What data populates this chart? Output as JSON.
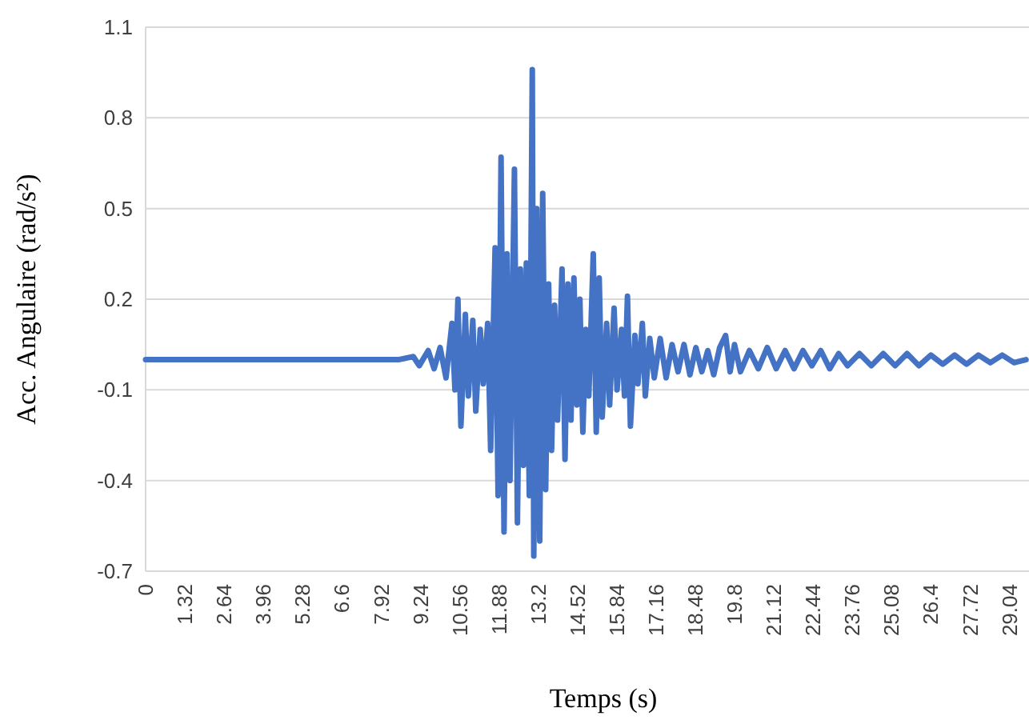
{
  "chart_data": {
    "type": "line",
    "xlabel": "Temps (s)",
    "ylabel": "Acc. Angulaire (rad/s²)",
    "x": [
      0,
      8.5,
      9.0,
      9.2,
      9.5,
      9.7,
      9.9,
      10.1,
      10.3,
      10.4,
      10.5,
      10.6,
      10.75,
      10.85,
      11.0,
      11.1,
      11.25,
      11.35,
      11.5,
      11.6,
      11.75,
      11.85,
      11.95,
      12.05,
      12.15,
      12.25,
      12.4,
      12.5,
      12.6,
      12.7,
      12.8,
      12.9,
      13.0,
      13.05,
      13.15,
      13.25,
      13.35,
      13.45,
      13.55,
      13.65,
      13.75,
      13.85,
      14.0,
      14.1,
      14.2,
      14.3,
      14.4,
      14.5,
      14.6,
      14.7,
      14.8,
      14.9,
      15.05,
      15.15,
      15.25,
      15.35,
      15.5,
      15.6,
      15.75,
      15.85,
      16.0,
      16.1,
      16.2,
      16.3,
      16.45,
      16.55,
      16.7,
      16.8,
      16.95,
      17.1,
      17.3,
      17.5,
      17.7,
      17.9,
      18.1,
      18.3,
      18.5,
      18.7,
      18.9,
      19.1,
      19.3,
      19.5,
      19.65,
      19.8,
      20.0,
      20.3,
      20.6,
      20.9,
      21.2,
      21.5,
      21.8,
      22.1,
      22.4,
      22.7,
      23.0,
      23.3,
      23.6,
      24.0,
      24.4,
      24.8,
      25.2,
      25.6,
      26.0,
      26.4,
      26.8,
      27.2,
      27.6,
      28.0,
      28.4,
      28.8,
      29.2,
      29.6
    ],
    "series": [
      {
        "color": "#4472c4",
        "values": [
          0,
          0,
          0.01,
          -0.02,
          0.03,
          -0.03,
          0.04,
          -0.06,
          0.12,
          -0.1,
          0.2,
          -0.22,
          0.15,
          -0.12,
          0.13,
          -0.17,
          0.1,
          -0.08,
          0.12,
          -0.3,
          0.37,
          -0.45,
          0.67,
          -0.57,
          0.35,
          -0.4,
          0.63,
          -0.54,
          0.3,
          -0.35,
          0.32,
          -0.45,
          0.96,
          -0.65,
          0.5,
          -0.6,
          0.55,
          -0.43,
          0.25,
          -0.3,
          0.18,
          -0.2,
          0.3,
          -0.33,
          0.25,
          -0.2,
          0.27,
          -0.15,
          0.2,
          -0.24,
          0.1,
          -0.12,
          0.35,
          -0.24,
          0.27,
          -0.19,
          0.12,
          -0.15,
          0.17,
          -0.1,
          0.1,
          -0.12,
          0.21,
          -0.22,
          0.08,
          -0.08,
          0.12,
          -0.12,
          0.07,
          -0.06,
          0.07,
          -0.06,
          0.05,
          -0.04,
          0.05,
          -0.05,
          0.04,
          -0.04,
          0.03,
          -0.05,
          0.04,
          0.08,
          -0.04,
          0.05,
          -0.04,
          0.03,
          -0.03,
          0.04,
          -0.03,
          0.03,
          -0.03,
          0.03,
          -0.02,
          0.03,
          -0.03,
          0.02,
          -0.02,
          0.02,
          -0.02,
          0.02,
          -0.02,
          0.02,
          -0.02,
          0.015,
          -0.015,
          0.015,
          -0.015,
          0.015,
          -0.01,
          0.015,
          -0.01,
          0
        ]
      }
    ],
    "xlim": [
      0,
      29.7
    ],
    "xticks": [
      0,
      1.32,
      2.64,
      3.96,
      5.28,
      6.6,
      7.92,
      9.24,
      10.56,
      11.88,
      13.2,
      14.52,
      15.84,
      17.16,
      18.48,
      19.8,
      21.12,
      22.44,
      23.76,
      25.08,
      26.4,
      27.72,
      29.04
    ],
    "ylim": [
      -0.7,
      1.1
    ],
    "yticks": [
      -0.7,
      -0.4,
      -0.1,
      0.2,
      0.5,
      0.8,
      1.1
    ],
    "grid": "y",
    "marker": "none",
    "line_style": "solid"
  }
}
